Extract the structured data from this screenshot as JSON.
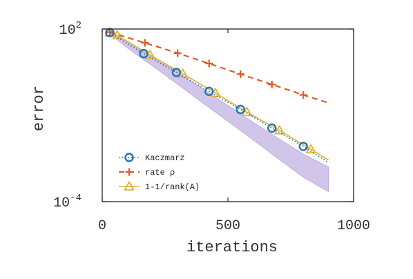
{
  "chart_data": {
    "type": "line",
    "title": "",
    "xlabel": "iterations",
    "ylabel": "error",
    "xlim": [
      0,
      1000
    ],
    "ylim": [
      0.0001,
      100
    ],
    "yscale": "log",
    "grid": false,
    "legend_position": "bottom-left",
    "x_ticks": [
      0,
      500,
      1000
    ],
    "x_tick_labels": [
      "0",
      "500",
      "1000"
    ],
    "y_ticks": [
      0.0001,
      100
    ],
    "y_tick_labels": [
      {
        "base": "10",
        "exp": "-4"
      },
      {
        "base": "10",
        "exp": "2"
      }
    ],
    "series": [
      {
        "name": "Kaczmarz",
        "style": "dotted-circle",
        "color": "#1f77b4",
        "x": [
          30,
          165,
          295,
          425,
          550,
          675,
          800,
          900
        ],
        "y": [
          75,
          14,
          3.1,
          0.68,
          0.16,
          0.036,
          0.0083,
          0.0023
        ]
      },
      {
        "name": "rate ρ",
        "style": "dashed-plus",
        "color": "#e0582a",
        "x": [
          30,
          170,
          300,
          425,
          550,
          675,
          800,
          900
        ],
        "y": [
          78,
          33,
          14.5,
          6.3,
          2.7,
          1.18,
          0.51,
          0.27
        ]
      },
      {
        "name": "1-1/rank(A)",
        "style": "solid-triangle",
        "color": "#e8b030",
        "x": [
          30,
          60,
          190,
          320,
          450,
          575,
          705,
          830,
          900
        ],
        "y": [
          75,
          60,
          12.5,
          2.8,
          0.6,
          0.13,
          0.03,
          0.0066,
          0.0028
        ]
      }
    ],
    "band": {
      "color": "#9b7fd0",
      "x": [
        30,
        100,
        200,
        300,
        400,
        500,
        600,
        700,
        800,
        900
      ],
      "lower": [
        68,
        22,
        5.2,
        1.2,
        0.27,
        0.062,
        0.014,
        0.0031,
        0.0007,
        0.00022
      ],
      "upper": [
        82,
        38,
        11.5,
        3.2,
        0.82,
        0.22,
        0.058,
        0.016,
        0.0045,
        0.0016
      ]
    }
  }
}
